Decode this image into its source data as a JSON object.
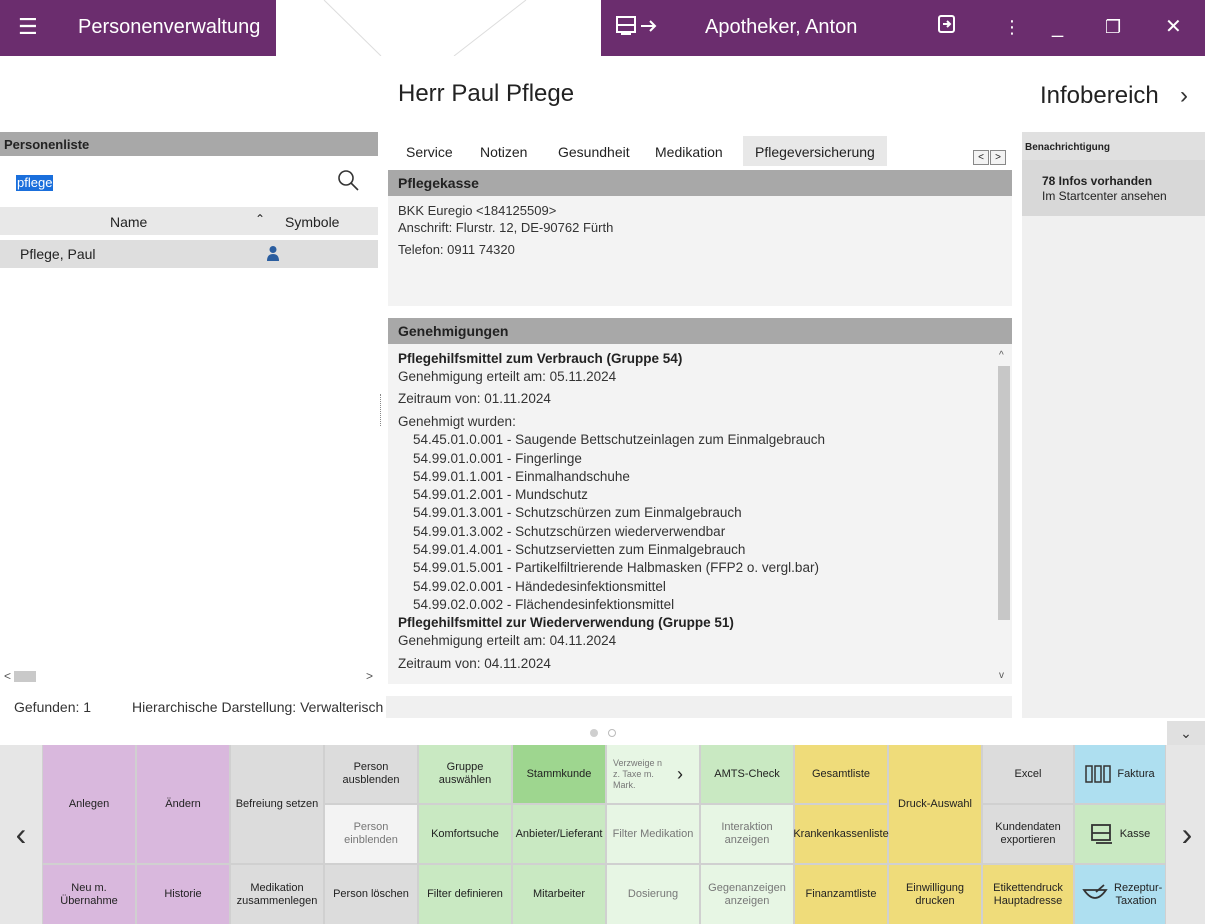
{
  "titlebar": {
    "menu_icon": "hamburger-icon",
    "app_title": "Personenverwaltung",
    "user_switch_icon": "user-switch-icon",
    "user_name": "Apotheker, Anton",
    "logout_icon": "logout-icon",
    "more_icon": "more-vertical-icon",
    "minimize": "_",
    "restore": "❐",
    "close": "✕"
  },
  "person": {
    "title": "Herr Paul Pflege"
  },
  "personenliste": {
    "header": "Personenliste",
    "search_value": "pflege",
    "columns": [
      "Name",
      "Symbole"
    ],
    "rows": [
      {
        "name": "Pflege, Paul",
        "symbol": "person-icon"
      }
    ]
  },
  "status": {
    "found": "Gefunden: 1",
    "hierarchy": "Hierarchische Darstellung: Verwalterisch"
  },
  "tabs": [
    "Service",
    "Notizen",
    "Gesundheit",
    "Medikation",
    "Pflegeversicherung"
  ],
  "active_tab": "Pflegeversicherung",
  "pflegekasse": {
    "header": "Pflegekasse",
    "name": "BKK Euregio <184125509>",
    "address": "Anschrift: Flurstr. 12, DE-90762 Fürth",
    "phone": "Telefon: 0911 74320"
  },
  "genehmigungen": {
    "header": "Genehmigungen",
    "group1": {
      "title": "Pflegehilfsmittel zum Verbrauch (Gruppe 54)",
      "granted": "Genehmigung erteilt am: 05.11.2024",
      "period": "Zeitraum von: 01.11.2024",
      "items_label": "Genehmigt wurden:",
      "items": [
        "54.45.01.0.001 - Saugende Bettschutzeinlagen zum Einmalgebrauch",
        "54.99.01.0.001 - Fingerlinge",
        "54.99.01.1.001 - Einmalhandschuhe",
        "54.99.01.2.001 - Mundschutz",
        "54.99.01.3.001 - Schutzschürzen zum Einmalgebrauch",
        "54.99.01.3.002 - Schutzschürzen wiederverwendbar",
        "54.99.01.4.001 - Schutzservietten zum Einmalgebrauch",
        "54.99.01.5.001 - Partikelfiltrierende Halbmasken (FFP2 o. vergl.bar)",
        "54.99.02.0.001 - Händedesinfektionsmittel",
        "54.99.02.0.002 - Flächendesinfektionsmittel"
      ]
    },
    "group2": {
      "title": "Pflegehilfsmittel zur Wiederverwendung (Gruppe 51)",
      "granted": "Genehmigung erteilt am: 04.11.2024",
      "period": "Zeitraum von: 04.11.2024"
    }
  },
  "infobereich": {
    "title": "Infobereich",
    "section": "Benachrichtigung",
    "count_text": "78  Infos vorhanden",
    "link_text": "Im Startcenter ansehen"
  },
  "fkeys": {
    "anlegen": "Anlegen",
    "aendern": "Ändern",
    "befreiung": "Befreiung setzen",
    "neu_uebernahme": "Neu m. Übernahme",
    "historie": "Historie",
    "medikation_zusammen": "Medikation zusammenlegen",
    "person_ausblenden": "Person ausblenden",
    "person_einblenden": "Person einblenden",
    "person_loeschen": "Person löschen",
    "gruppe_auswaehlen": "Gruppe auswählen",
    "komfortsuche": "Komfortsuche",
    "filter_definieren": "Filter definieren",
    "stammkunde": "Stammkunde",
    "anbieter": "Anbieter/Lieferant",
    "mitarbeiter": "Mitarbeiter",
    "verzweige": "Verzweige n z. Taxe m. Mark.",
    "filter_medikation": "Filter Medikation",
    "dosierung": "Dosierung",
    "amts": "AMTS-Check",
    "interaktion": "Interaktion anzeigen",
    "gegenanzeigen": "Gegenanzeigen anzeigen",
    "gesamtliste": "Gesamtliste",
    "krankenkassenliste": "Krankenkassenliste",
    "finanzamtliste": "Finanzamtliste",
    "druck_auswahl": "Druck-Auswahl",
    "einwilligung": "Einwilligung drucken",
    "excel": "Excel",
    "kundendaten": "Kundendaten exportieren",
    "etikettendruck": "Etikettendruck Hauptadresse",
    "faktura": "Faktura",
    "kasse": "Kasse",
    "rezeptur": "Rezeptur-Taxation"
  },
  "colors": {
    "brand_purple": "#6b2d6e",
    "header_grey": "#a8a8a8",
    "key_purple": "#d9b8dd",
    "key_green": "#9ed68f",
    "key_lightgreen": "#c9e9c2",
    "key_yellow": "#efdc7a",
    "key_blue": "#aedff0"
  }
}
